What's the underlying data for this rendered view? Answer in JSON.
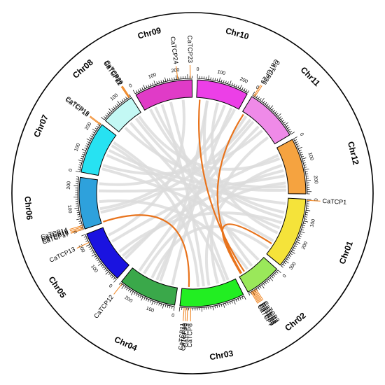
{
  "colors": {
    "link_grey": "#dcdcdc",
    "link_highlight": "#e8731c",
    "gene_line": "#f08a2a",
    "outer_circle": "#000000"
  },
  "chromosomes": [
    {
      "name": "Chr01",
      "color": "#f5e33a",
      "length": 330,
      "ticks": [
        {
          "v": 0,
          "label": "0"
        },
        {
          "v": 100,
          "label": "100"
        },
        {
          "v": 200,
          "label": "200"
        },
        {
          "v": 300,
          "label": "300"
        }
      ]
    },
    {
      "name": "Chr02",
      "color": "#9ae85a",
      "length": 170,
      "ticks": [
        {
          "v": 0,
          "label": "0"
        },
        {
          "v": 100,
          "label": ""
        }
      ]
    },
    {
      "name": "Chr03",
      "color": "#22ee22",
      "length": 300,
      "ticks": [
        {
          "v": 0,
          "label": ""
        },
        {
          "v": 100,
          "label": ""
        },
        {
          "v": 200,
          "label": ""
        }
      ]
    },
    {
      "name": "Chr04",
      "color": "#3aa84a",
      "length": 270,
      "ticks": [
        {
          "v": 0,
          "label": "0"
        },
        {
          "v": 100,
          "label": "100"
        },
        {
          "v": 200,
          "label": "200"
        }
      ]
    },
    {
      "name": "Chr05",
      "color": "#1a13e0",
      "length": 250,
      "ticks": [
        {
          "v": 0,
          "label": "0"
        },
        {
          "v": 100,
          "label": "100"
        },
        {
          "v": 200,
          "label": "200"
        }
      ]
    },
    {
      "name": "Chr06",
      "color": "#2ea1dc",
      "length": 240,
      "ticks": [
        {
          "v": 0,
          "label": "0"
        },
        {
          "v": 100,
          "label": "100"
        },
        {
          "v": 200,
          "label": "200"
        }
      ]
    },
    {
      "name": "Chr07",
      "color": "#27e2f2",
      "length": 240,
      "ticks": [
        {
          "v": 0,
          "label": "0"
        },
        {
          "v": 100,
          "label": "100"
        },
        {
          "v": 200,
          "label": "200"
        }
      ]
    },
    {
      "name": "Chr08",
      "color": "#c3f8f4",
      "length": 160,
      "ticks": [
        {
          "v": 0,
          "label": ""
        },
        {
          "v": 100,
          "label": "100"
        }
      ]
    },
    {
      "name": "Chr09",
      "color": "#e03bc7",
      "length": 270,
      "ticks": [
        {
          "v": 0,
          "label": "0"
        },
        {
          "v": 100,
          "label": "100"
        },
        {
          "v": 200,
          "label": "200"
        }
      ]
    },
    {
      "name": "Chr10",
      "color": "#ec3fe7",
      "length": 240,
      "ticks": [
        {
          "v": 0,
          "label": "0"
        },
        {
          "v": 100,
          "label": "100"
        },
        {
          "v": 200,
          "label": "200"
        }
      ]
    },
    {
      "name": "Chr11",
      "color": "#ef8ae8",
      "length": 250,
      "ticks": [
        {
          "v": 0,
          "label": "0"
        },
        {
          "v": 100,
          "label": ""
        },
        {
          "v": 200,
          "label": ""
        }
      ]
    },
    {
      "name": "Chr12",
      "color": "#f5a340",
      "length": 260,
      "ticks": [
        {
          "v": 0,
          "label": "0"
        },
        {
          "v": 100,
          "label": "100"
        },
        {
          "v": 200,
          "label": "200"
        }
      ]
    }
  ],
  "genes": [
    {
      "name": "CaTCP1",
      "chr": 0,
      "pos": 5
    },
    {
      "name": "CaTCP2",
      "chr": 1,
      "pos": 132
    },
    {
      "name": "CaTCP3",
      "chr": 1,
      "pos": 138
    },
    {
      "name": "CaTCP4",
      "chr": 1,
      "pos": 143
    },
    {
      "name": "CaTCP5",
      "chr": 1,
      "pos": 148
    },
    {
      "name": "CaTCP6",
      "chr": 1,
      "pos": 153
    },
    {
      "name": "CaTCP7",
      "chr": 1,
      "pos": 158
    },
    {
      "name": "CaTCP8",
      "chr": 2,
      "pos": 250
    },
    {
      "name": "CaTCP9",
      "chr": 2,
      "pos": 264
    },
    {
      "name": "CaTCP10",
      "chr": 2,
      "pos": 272
    },
    {
      "name": "CaTCP11",
      "chr": 2,
      "pos": 280
    },
    {
      "name": "CaTCP12",
      "chr": 3,
      "pos": 262
    },
    {
      "name": "CaTCP13",
      "chr": 4,
      "pos": 210
    },
    {
      "name": "CaTCP14",
      "chr": 5,
      "pos": 18
    },
    {
      "name": "CaTCP15",
      "chr": 5,
      "pos": 12
    },
    {
      "name": "CaTCP16",
      "chr": 5,
      "pos": 6
    },
    {
      "name": "CaTCP17",
      "chr": 5,
      "pos": 1
    },
    {
      "name": "CaTCP18",
      "chr": 6,
      "pos": 235
    },
    {
      "name": "CaTCP19",
      "chr": 6,
      "pos": 239
    },
    {
      "name": "CaTCP20",
      "chr": 7,
      "pos": 155
    },
    {
      "name": "CaTCP21",
      "chr": 7,
      "pos": 152
    },
    {
      "name": "CaTCP22",
      "chr": 7,
      "pos": 149
    },
    {
      "name": "CaTCP23",
      "chr": 8,
      "pos": 262
    },
    {
      "name": "CaTCP24",
      "chr": 8,
      "pos": 205
    },
    {
      "name": "CaTCP25",
      "chr": 10,
      "pos": 6
    },
    {
      "name": "CaTCP26",
      "chr": 10,
      "pos": 12
    }
  ],
  "highlight_links": [
    {
      "a": {
        "chr": 5,
        "pos": 6
      },
      "b": {
        "chr": 2,
        "pos": 262
      }
    },
    {
      "a": {
        "chr": 9,
        "pos": 18
      },
      "b": {
        "chr": 1,
        "pos": 132
      }
    },
    {
      "a": {
        "chr": 10,
        "pos": 12
      },
      "b": {
        "chr": 1,
        "pos": 150
      }
    },
    {
      "a": {
        "chr": 0,
        "pos": 268
      },
      "b": {
        "chr": 1,
        "pos": 155
      }
    }
  ],
  "grey_links": [
    {
      "a": {
        "chr": 0,
        "pos": 30
      },
      "b": {
        "chr": 6,
        "pos": 120
      }
    },
    {
      "a": {
        "chr": 0,
        "pos": 80
      },
      "b": {
        "chr": 8,
        "pos": 60
      }
    },
    {
      "a": {
        "chr": 0,
        "pos": 140
      },
      "b": {
        "chr": 4,
        "pos": 90
      }
    },
    {
      "a": {
        "chr": 0,
        "pos": 200
      },
      "b": {
        "chr": 9,
        "pos": 120
      }
    },
    {
      "a": {
        "chr": 0,
        "pos": 250
      },
      "b": {
        "chr": 6,
        "pos": 40
      }
    },
    {
      "a": {
        "chr": 0,
        "pos": 300
      },
      "b": {
        "chr": 3,
        "pos": 150
      }
    },
    {
      "a": {
        "chr": 1,
        "pos": 30
      },
      "b": {
        "chr": 7,
        "pos": 80
      }
    },
    {
      "a": {
        "chr": 1,
        "pos": 80
      },
      "b": {
        "chr": 9,
        "pos": 60
      }
    },
    {
      "a": {
        "chr": 1,
        "pos": 110
      },
      "b": {
        "chr": 5,
        "pos": 120
      }
    },
    {
      "a": {
        "chr": 2,
        "pos": 40
      },
      "b": {
        "chr": 8,
        "pos": 150
      }
    },
    {
      "a": {
        "chr": 2,
        "pos": 100
      },
      "b": {
        "chr": 10,
        "pos": 200
      }
    },
    {
      "a": {
        "chr": 2,
        "pos": 150
      },
      "b": {
        "chr": 11,
        "pos": 100
      }
    },
    {
      "a": {
        "chr": 2,
        "pos": 210
      },
      "b": {
        "chr": 6,
        "pos": 180
      }
    },
    {
      "a": {
        "chr": 3,
        "pos": 30
      },
      "b": {
        "chr": 9,
        "pos": 200
      }
    },
    {
      "a": {
        "chr": 3,
        "pos": 200
      },
      "b": {
        "chr": 11,
        "pos": 200
      }
    },
    {
      "a": {
        "chr": 4,
        "pos": 40
      },
      "b": {
        "chr": 10,
        "pos": 80
      }
    },
    {
      "a": {
        "chr": 4,
        "pos": 160
      },
      "b": {
        "chr": 11,
        "pos": 40
      }
    },
    {
      "a": {
        "chr": 5,
        "pos": 80
      },
      "b": {
        "chr": 9,
        "pos": 160
      }
    },
    {
      "a": {
        "chr": 5,
        "pos": 180
      },
      "b": {
        "chr": 11,
        "pos": 160
      }
    },
    {
      "a": {
        "chr": 6,
        "pos": 60
      },
      "b": {
        "chr": 10,
        "pos": 150
      }
    },
    {
      "a": {
        "chr": 6,
        "pos": 200
      },
      "b": {
        "chr": 2,
        "pos": 60
      }
    },
    {
      "a": {
        "chr": 7,
        "pos": 40
      },
      "b": {
        "chr": 11,
        "pos": 220
      }
    },
    {
      "a": {
        "chr": 7,
        "pos": 120
      },
      "b": {
        "chr": 0,
        "pos": 170
      }
    },
    {
      "a": {
        "chr": 8,
        "pos": 100
      },
      "b": {
        "chr": 2,
        "pos": 180
      }
    },
    {
      "a": {
        "chr": 8,
        "pos": 220
      },
      "b": {
        "chr": 4,
        "pos": 200
      }
    },
    {
      "a": {
        "chr": 9,
        "pos": 60
      },
      "b": {
        "chr": 3,
        "pos": 100
      }
    },
    {
      "a": {
        "chr": 9,
        "pos": 220
      },
      "b": {
        "chr": 5,
        "pos": 220
      }
    },
    {
      "a": {
        "chr": 10,
        "pos": 120
      },
      "b": {
        "chr": 3,
        "pos": 230
      }
    },
    {
      "a": {
        "chr": 11,
        "pos": 60
      },
      "b": {
        "chr": 7,
        "pos": 140
      }
    },
    {
      "a": {
        "chr": 11,
        "pos": 130
      },
      "b": {
        "chr": 4,
        "pos": 60
      }
    },
    {
      "a": {
        "chr": 10,
        "pos": 60
      },
      "b": {
        "chr": 5,
        "pos": 60
      }
    },
    {
      "a": {
        "chr": 8,
        "pos": 30
      },
      "b": {
        "chr": 0,
        "pos": 110
      }
    },
    {
      "a": {
        "chr": 6,
        "pos": 150
      },
      "b": {
        "chr": 11,
        "pos": 240
      }
    },
    {
      "a": {
        "chr": 3,
        "pos": 120
      },
      "b": {
        "chr": 10,
        "pos": 30
      }
    }
  ]
}
